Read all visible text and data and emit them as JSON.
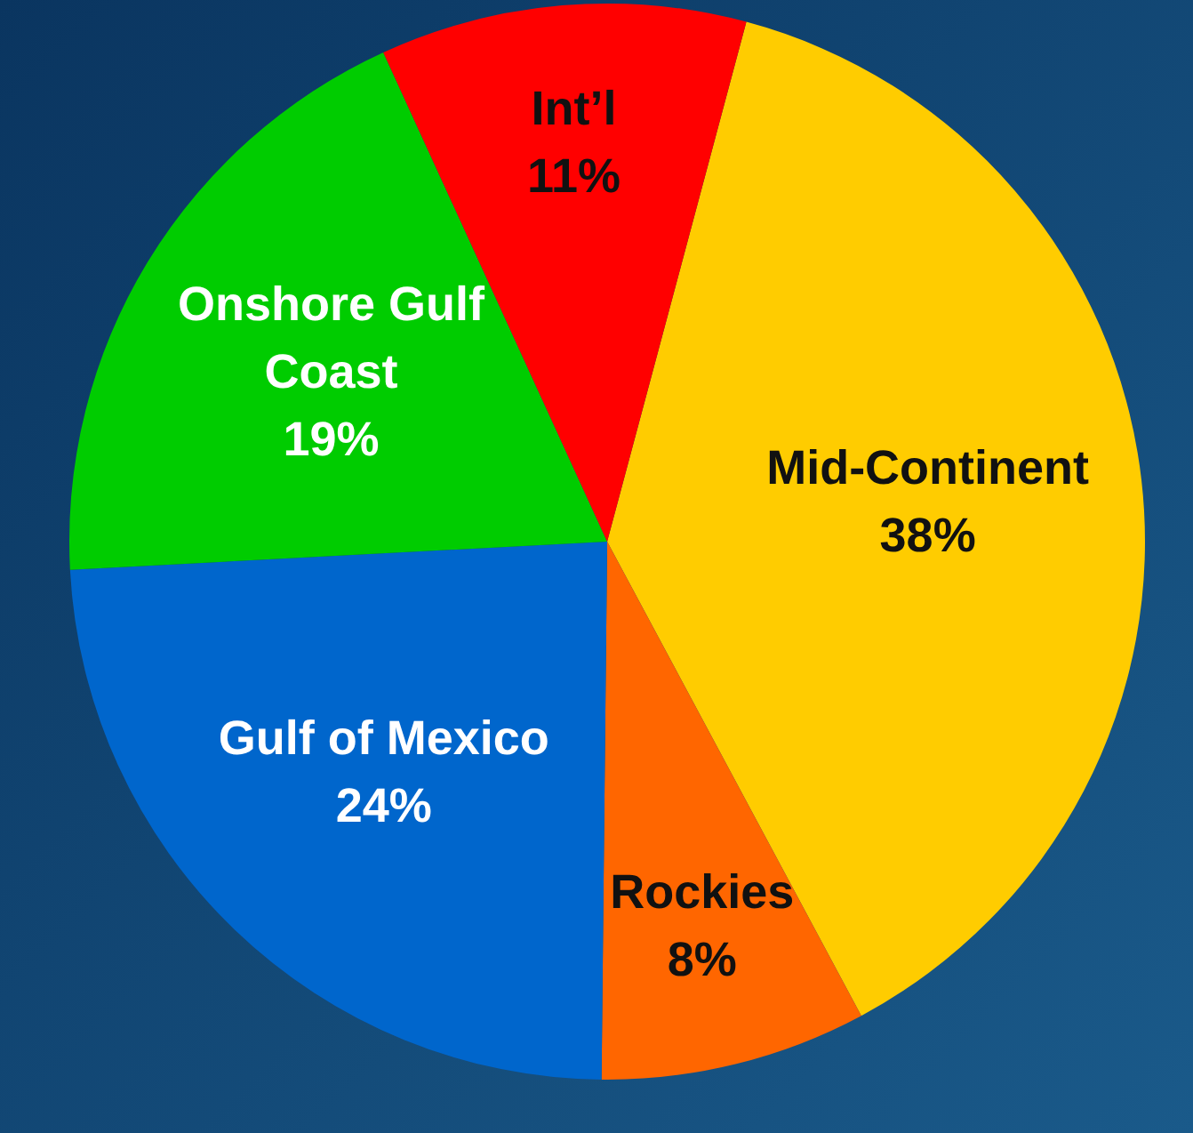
{
  "chart_data": {
    "type": "pie",
    "categories": [
      "Mid-Continent",
      "Rockies",
      "Gulf of Mexico",
      "Onshore Gulf Coast",
      "Int’l"
    ],
    "values": [
      38,
      8,
      24,
      19,
      11
    ],
    "value_labels": [
      "38%",
      "8%",
      "24%",
      "19%",
      "11%"
    ],
    "colors": [
      "#ffcc00",
      "#ff6600",
      "#0066cc",
      "#00cc00",
      "#ff0000"
    ],
    "legend": false
  }
}
